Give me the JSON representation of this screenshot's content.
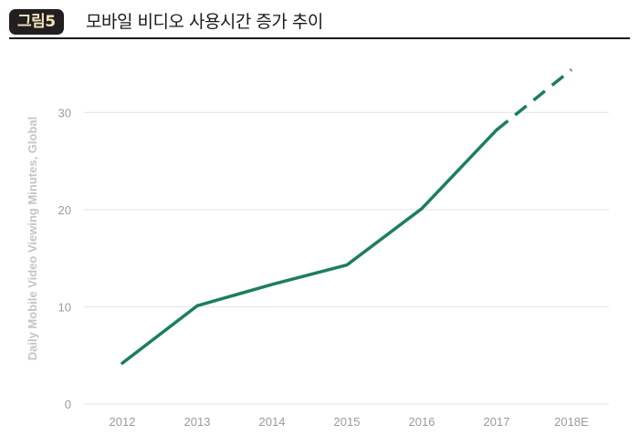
{
  "figure": {
    "badge": "그림5",
    "title": "모바일 비디오 사용시간 증가 추이"
  },
  "chart_data": {
    "type": "line",
    "ylabel": "Daily Mobile Video Viewing Minutes, Global",
    "xlabel": "",
    "categories": [
      "2012",
      "2013",
      "2014",
      "2015",
      "2016",
      "2017",
      "2018E"
    ],
    "yticks": [
      0,
      10,
      20,
      30
    ],
    "ylim": [
      0,
      35
    ],
    "grid": true,
    "line_color": "#1b7f5a",
    "series": [
      {
        "values": [
          4.2,
          10.1,
          12.3,
          14.3,
          20.1,
          28.2,
          34.4
        ],
        "projected_from_index": 5
      }
    ]
  }
}
